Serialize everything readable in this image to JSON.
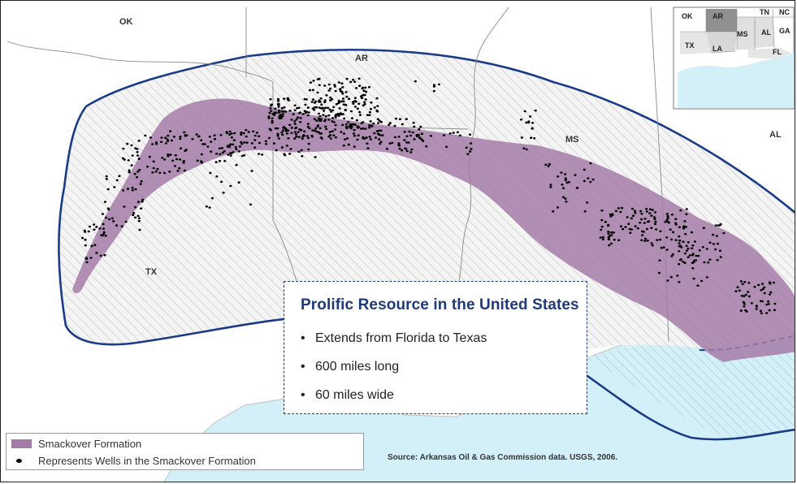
{
  "states": {
    "ok": "OK",
    "ar": "AR",
    "ms": "MS",
    "al": "AL",
    "tx": "TX"
  },
  "inset": {
    "labels": [
      "OK",
      "AR",
      "TN",
      "NC",
      "TX",
      "MS",
      "AL",
      "GA",
      "LA",
      "FL"
    ],
    "highlighted_state": "AR"
  },
  "info_box": {
    "title": "Prolific Resource in the United States",
    "bullets": [
      "Extends from Florida to Texas",
      "600 miles long",
      "60 miles wide"
    ]
  },
  "legend": {
    "formation_label": "Smackover Formation",
    "wells_label": "Represents Wells in the Smackover Formation"
  },
  "source": "Source: Arkansas Oil & Gas Commission data. USGS, 2006.",
  "colors": {
    "formation": "#a57ba8",
    "boundary": "#1a3a8a",
    "water": "#d3eff7",
    "wells": "#000000",
    "title": "#1f3a7a"
  }
}
